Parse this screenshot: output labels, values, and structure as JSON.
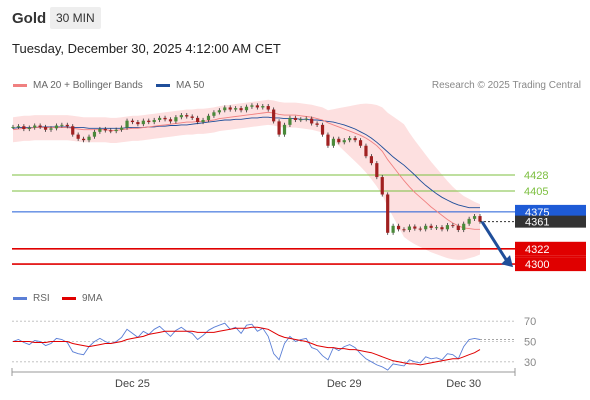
{
  "header": {
    "instrument": "Gold",
    "timeframe": "30 MIN",
    "datetime": "Tuesday, December 30, 2025 4:12:00 AM CET"
  },
  "legend": {
    "ma20": {
      "label": "MA 20 + Bollinger Bands",
      "color": "#f08080"
    },
    "ma50": {
      "label": "MA 50",
      "color": "#1f4e9a"
    },
    "credit": "Research © 2025 Trading Central",
    "rsi": {
      "label": "RSI",
      "color": "#5b7fd6"
    },
    "ma9": {
      "label": "9MA",
      "color": "#e00000"
    }
  },
  "chart_data": [
    {
      "type": "candlestick",
      "xlabel": "",
      "ylabel": "",
      "x_ticks": [
        "Dec 25",
        "Dec 29",
        "Dec 30"
      ],
      "levels": [
        {
          "value": 4428,
          "label": "4428",
          "color": "#7cbf3f",
          "kind": "resistance"
        },
        {
          "value": 4405,
          "label": "4405",
          "color": "#7cbf3f",
          "kind": "resistance"
        },
        {
          "value": 4375,
          "label": "4375",
          "color": "#1e5bd6",
          "kind": "pivot"
        },
        {
          "value": 4322,
          "label": "4322",
          "color": "#e00000",
          "kind": "support"
        },
        {
          "value": 4300,
          "label": "4300",
          "color": "#e00000",
          "kind": "support"
        }
      ],
      "last_price": {
        "value": 4361,
        "label": "4361"
      },
      "forecast_target": 4300,
      "close_series": [
        4497,
        4498,
        4494,
        4496,
        4499,
        4497,
        4493,
        4495,
        4499,
        4500,
        4498,
        4486,
        4480,
        4478,
        4483,
        4490,
        4494,
        4492,
        4491,
        4493,
        4496,
        4506,
        4504,
        4501,
        4506,
        4504,
        4507,
        4510,
        4508,
        4505,
        4511,
        4514,
        4512,
        4510,
        4504,
        4507,
        4513,
        4518,
        4521,
        4525,
        4522,
        4524,
        4521,
        4526,
        4528,
        4525,
        4527,
        4522,
        4505,
        4486,
        4500,
        4510,
        4507,
        4508,
        4509,
        4502,
        4500,
        4486,
        4470,
        4480,
        4475,
        4478,
        4481,
        4478,
        4470,
        4455,
        4445,
        4425,
        4400,
        4345,
        4355,
        4350,
        4349,
        4354,
        4351,
        4350,
        4355,
        4352,
        4353,
        4350,
        4356,
        4355,
        4349,
        4358,
        4365,
        4369,
        4361
      ],
      "ma20_series": [
        4493,
        4494,
        4495,
        4495,
        4496,
        4496,
        4496,
        4496,
        4496,
        4496,
        4496,
        4495,
        4494,
        4493,
        4493,
        4493,
        4493,
        4493,
        4492,
        4492,
        4493,
        4494,
        4495,
        4495,
        4496,
        4497,
        4498,
        4499,
        4500,
        4501,
        4502,
        4503,
        4504,
        4504,
        4505,
        4505,
        4506,
        4507,
        4509,
        4510,
        4511,
        4512,
        4513,
        4514,
        4515,
        4516,
        4517,
        4518,
        4517,
        4515,
        4514,
        4514,
        4514,
        4513,
        4512,
        4511,
        4509,
        4507,
        4503,
        4500,
        4497,
        4494,
        4491,
        4488,
        4485,
        4481,
        4476,
        4470,
        4462,
        4450,
        4440,
        4430,
        4420,
        4411,
        4403,
        4396,
        4389,
        4382,
        4376,
        4370,
        4364,
        4359,
        4355,
        4352,
        4351,
        4350,
        4350
      ],
      "ma50_series": [
        4495,
        4496,
        4496,
        4496,
        4496,
        4497,
        4497,
        4497,
        4497,
        4497,
        4497,
        4496,
        4496,
        4496,
        4495,
        4495,
        4495,
        4495,
        4495,
        4495,
        4495,
        4496,
        4496,
        4496,
        4496,
        4497,
        4497,
        4498,
        4498,
        4499,
        4499,
        4500,
        4500,
        4501,
        4502,
        4503,
        4504,
        4505,
        4506,
        4507,
        4507,
        4508,
        4508,
        4509,
        4510,
        4510,
        4511,
        4511,
        4510,
        4510,
        4509,
        4509,
        4509,
        4508,
        4508,
        4507,
        4507,
        4506,
        4505,
        4504,
        4502,
        4500,
        4497,
        4494,
        4490,
        4486,
        4481,
        4475,
        4468,
        4461,
        4454,
        4448,
        4442,
        4435,
        4428,
        4420,
        4413,
        4407,
        4401,
        4396,
        4392,
        4388,
        4385,
        4383,
        4381,
        4381,
        4381
      ]
    },
    {
      "type": "line",
      "ylim": [
        20,
        80
      ],
      "y_ticks": [
        70,
        50,
        30
      ],
      "rsi_series": [
        50,
        52,
        49,
        47,
        51,
        50,
        46,
        48,
        53,
        52,
        49,
        40,
        38,
        37,
        45,
        50,
        53,
        50,
        48,
        50,
        54,
        62,
        58,
        54,
        60,
        57,
        62,
        65,
        60,
        55,
        61,
        64,
        60,
        58,
        52,
        56,
        61,
        64,
        66,
        68,
        62,
        64,
        58,
        66,
        67,
        60,
        63,
        55,
        38,
        32,
        48,
        55,
        50,
        52,
        53,
        44,
        42,
        36,
        32,
        44,
        41,
        45,
        47,
        44,
        38,
        33,
        30,
        27,
        25,
        22,
        28,
        27,
        26,
        32,
        30,
        29,
        35,
        33,
        34,
        32,
        38,
        37,
        33,
        45,
        52,
        53,
        52
      ],
      "ma9_series": [
        50,
        50,
        50,
        50,
        49,
        49,
        49,
        50,
        50,
        50,
        50,
        48,
        47,
        46,
        45,
        46,
        47,
        48,
        48,
        49,
        50,
        52,
        53,
        54,
        55,
        57,
        58,
        59,
        60,
        60,
        60,
        60,
        60,
        60,
        59,
        59,
        59,
        59,
        60,
        61,
        62,
        63,
        63,
        63,
        64,
        64,
        63,
        62,
        59,
        56,
        54,
        53,
        52,
        51,
        50,
        48,
        46,
        45,
        44,
        44,
        43,
        43,
        42,
        42,
        41,
        40,
        39,
        37,
        35,
        33,
        31,
        30,
        29,
        28,
        28,
        27,
        28,
        29,
        30,
        31,
        32,
        33,
        33,
        35,
        37,
        39,
        42
      ]
    }
  ]
}
